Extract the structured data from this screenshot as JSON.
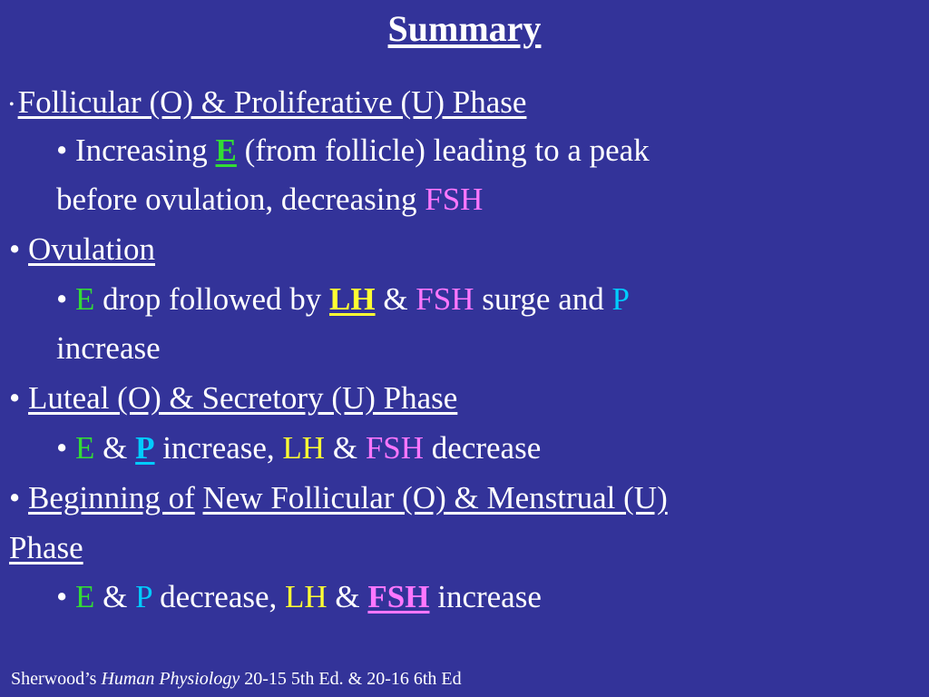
{
  "title": "Summary",
  "bullet": "•",
  "items": [
    {
      "heading": "Follicular (O) & Proliferative (U) Phase",
      "sub": {
        "t1": "Increasing ",
        "E": "E",
        "t2": " (from follicle) leading to a peak",
        "line2": "before ovulation, decreasing ",
        "FSH": "FSH"
      }
    },
    {
      "heading": "Ovulation",
      "sub": {
        "E": "E",
        "t1": " drop followed by ",
        "LH": "LH",
        "amp": " & ",
        "FSH": "FSH",
        "t2": " surge and ",
        "P": "P",
        "line2": "increase"
      }
    },
    {
      "heading": "Luteal (O) & Secretory (U) Phase",
      "sub": {
        "E": "E",
        "amp1": " & ",
        "P": "P",
        "t1": " increase, ",
        "LH": "LH",
        "amp2": " & ",
        "FSH": "FSH",
        "t2": " decrease"
      }
    },
    {
      "heading_a": "Beginning of",
      "heading_b": "New Follicular (O) & Menstrual (U)",
      "heading_c": "Phase",
      "sub": {
        "E": "E",
        "amp1": " & ",
        "P": "P",
        "t1": " decrease, ",
        "LH": "LH",
        "amp2": " & ",
        "FSH": "FSH",
        "t2": " increase"
      }
    }
  ],
  "footer": {
    "author": "Sherwood’s ",
    "book": "Human Physiology",
    "edition": " 20-15 5th Ed. & 20-16 6th Ed"
  },
  "colors": {
    "background": "#333399",
    "estrogen": "#33dd33",
    "fsh": "#ff77ff",
    "lh": "#ffff33",
    "progesterone": "#00ccff"
  }
}
